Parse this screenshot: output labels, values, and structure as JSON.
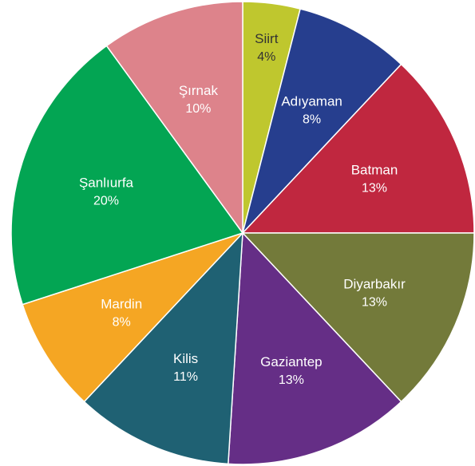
{
  "chart_data": {
    "type": "pie",
    "start_angle_deg": 0,
    "direction": "clockwise",
    "slices": [
      {
        "label": "Siirt",
        "value_label": "4%",
        "value": 4,
        "color": "#bfc72e",
        "label_color": "#333333"
      },
      {
        "label": "Adıyaman",
        "value_label": "8%",
        "value": 8,
        "color": "#263e8e",
        "label_color": "#ffffff"
      },
      {
        "label": "Batman",
        "value_label": "13%",
        "value": 13,
        "color": "#c0273f",
        "label_color": "#ffffff"
      },
      {
        "label": "Diyarbakır",
        "value_label": "13%",
        "value": 13,
        "color": "#737a3a",
        "label_color": "#ffffff"
      },
      {
        "label": "Gaziantep",
        "value_label": "13%",
        "value": 13,
        "color": "#652e86",
        "label_color": "#ffffff"
      },
      {
        "label": "Kilis",
        "value_label": "11%",
        "value": 11,
        "color": "#1f6173",
        "label_color": "#ffffff"
      },
      {
        "label": "Mardin",
        "value_label": "8%",
        "value": 8,
        "color": "#f5a623",
        "label_color": "#ffffff"
      },
      {
        "label": "Şanlıurfa",
        "value_label": "20%",
        "value": 20,
        "color": "#03a553",
        "label_color": "#ffffff"
      },
      {
        "label": "Şırnak",
        "value_label": "10%",
        "value": 10,
        "color": "#dd838b",
        "label_color": "#ffffff"
      }
    ]
  }
}
